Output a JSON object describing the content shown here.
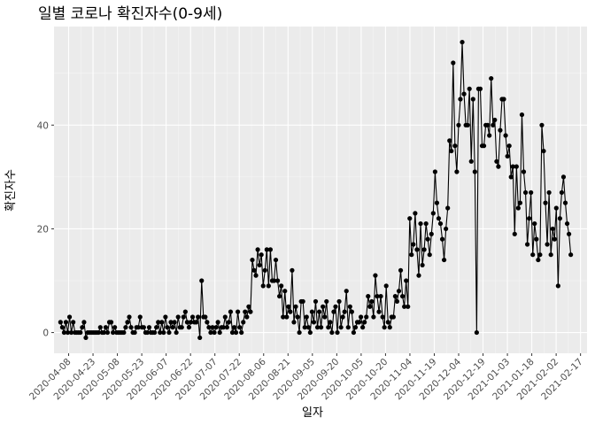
{
  "chart_data": {
    "type": "line",
    "title": "일별 코로나 확진자수(0-9세)",
    "xlabel": "일자",
    "ylabel": "확진자수",
    "x_start": "2020-04-03",
    "x_end": "2021-02-11",
    "xlim": [
      "2020-03-30",
      "2021-02-21"
    ],
    "ylim": [
      -4,
      59
    ],
    "x_ticks": [
      "2020-04-08",
      "2020-04-23",
      "2020-05-08",
      "2020-05-23",
      "2020-06-07",
      "2020-06-22",
      "2020-07-07",
      "2020-07-22",
      "2020-08-06",
      "2020-08-21",
      "2020-09-05",
      "2020-09-20",
      "2020-10-05",
      "2020-10-20",
      "2020-11-04",
      "2020-11-19",
      "2020-12-04",
      "2020-12-19",
      "2021-01-03",
      "2021-01-18",
      "2021-02-02",
      "2021-02-17"
    ],
    "y_ticks": [
      0,
      20,
      40
    ],
    "grid": true,
    "legend": "none",
    "colors": {
      "panel": "#ebebeb",
      "grid_major": "#ffffff",
      "grid_minor": "#f5f5f5",
      "line": "#000000"
    },
    "values": [
      2,
      1,
      0,
      2,
      0,
      3,
      0,
      2,
      0,
      0,
      0,
      0,
      1,
      2,
      -1,
      0,
      0,
      0,
      0,
      0,
      0,
      0,
      1,
      0,
      0,
      1,
      0,
      2,
      2,
      0,
      1,
      0,
      0,
      0,
      0,
      0,
      1,
      2,
      3,
      1,
      0,
      0,
      1,
      1,
      3,
      1,
      1,
      0,
      0,
      1,
      0,
      0,
      0,
      1,
      2,
      0,
      2,
      0,
      3,
      1,
      0,
      2,
      1,
      2,
      0,
      3,
      1,
      1,
      3,
      4,
      2,
      1,
      2,
      3,
      2,
      2,
      3,
      -1,
      10,
      3,
      3,
      2,
      1,
      0,
      1,
      0,
      1,
      2,
      0,
      1,
      1,
      3,
      1,
      2,
      4,
      0,
      1,
      0,
      4,
      1,
      0,
      2,
      4,
      3,
      5,
      4,
      14,
      12,
      11,
      16,
      13,
      15,
      9,
      12,
      16,
      9,
      16,
      10,
      10,
      14,
      10,
      7,
      9,
      3,
      8,
      3,
      5,
      4,
      12,
      2,
      5,
      3,
      0,
      6,
      6,
      1,
      3,
      1,
      0,
      4,
      2,
      6,
      1,
      4,
      1,
      5,
      3,
      6,
      1,
      2,
      0,
      4,
      5,
      0,
      6,
      1,
      3,
      4,
      8,
      1,
      5,
      4,
      0,
      1,
      2,
      2,
      3,
      1,
      2,
      3,
      7,
      5,
      6,
      3,
      11,
      7,
      4,
      7,
      3,
      1,
      9,
      2,
      1,
      3,
      3,
      7,
      6,
      8,
      12,
      7,
      5,
      10,
      5,
      22,
      15,
      17,
      23,
      16,
      11,
      21,
      13,
      16,
      21,
      18,
      15,
      19,
      23,
      31,
      25,
      22,
      21,
      18,
      14,
      20,
      24,
      37,
      35,
      52,
      36,
      31,
      40,
      45,
      56,
      46,
      40,
      40,
      47,
      33,
      45,
      31,
      0,
      47,
      47,
      36,
      36,
      40,
      40,
      38,
      49,
      40,
      41,
      33,
      32,
      39,
      45,
      45,
      38,
      34,
      36,
      30,
      32,
      19,
      32,
      24,
      25,
      42,
      31,
      27,
      17,
      22,
      27,
      15,
      21,
      18,
      14,
      15,
      40,
      35,
      25,
      17,
      27,
      15,
      20,
      18,
      24,
      9,
      22,
      27,
      30,
      25,
      21,
      19,
      15
    ]
  }
}
